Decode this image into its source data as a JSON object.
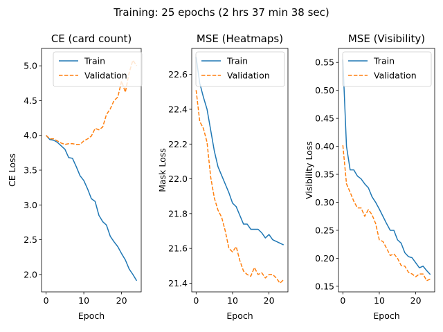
{
  "suptitle": "Training: 25 epochs (2 hrs 37 min 38 sec)",
  "colors": {
    "train": "#1f77b4",
    "validation": "#ff7f0e"
  },
  "chart_data": [
    {
      "type": "line",
      "title": "CE (card count)",
      "xlabel": "Epoch",
      "ylabel": "CE Loss",
      "xlim": [
        -1.2,
        25.2
      ],
      "ylim": [
        1.75,
        5.25
      ],
      "xticks": [
        0,
        10,
        20
      ],
      "yticks": [
        2.0,
        2.5,
        3.0,
        3.5,
        4.0,
        4.5,
        5.0
      ],
      "ytick_labels": [
        "2.0",
        "2.5",
        "3.0",
        "3.5",
        "4.0",
        "4.5",
        "5.0"
      ],
      "legend": "upper-left",
      "grid": false,
      "x": [
        0,
        1,
        2,
        3,
        4,
        5,
        6,
        7,
        8,
        9,
        10,
        11,
        12,
        13,
        14,
        15,
        16,
        17,
        18,
        19,
        20,
        21,
        22,
        23,
        24
      ],
      "series": [
        {
          "name": "Train",
          "style": "solid",
          "values": [
            4.0,
            3.94,
            3.93,
            3.9,
            3.85,
            3.8,
            3.68,
            3.67,
            3.55,
            3.42,
            3.35,
            3.23,
            3.09,
            3.05,
            2.85,
            2.76,
            2.71,
            2.55,
            2.47,
            2.4,
            2.3,
            2.21,
            2.08,
            2.0,
            1.91
          ]
        },
        {
          "name": "Validation",
          "style": "dashed",
          "values": [
            4.0,
            3.95,
            3.95,
            3.92,
            3.89,
            3.87,
            3.88,
            3.88,
            3.87,
            3.87,
            3.92,
            3.95,
            3.99,
            4.1,
            4.08,
            4.12,
            4.3,
            4.38,
            4.5,
            4.55,
            4.78,
            4.62,
            4.9,
            5.08,
            5.0
          ]
        }
      ]
    },
    {
      "type": "line",
      "title": "MSE (Heatmaps)",
      "xlabel": "Epoch",
      "ylabel": "Mask Loss",
      "xlim": [
        -1.2,
        25.2
      ],
      "ylim": [
        21.35,
        22.75
      ],
      "xticks": [
        0,
        10,
        20
      ],
      "yticks": [
        21.4,
        21.6,
        21.8,
        22.0,
        22.2,
        22.4,
        22.6
      ],
      "ytick_labels": [
        "21.4",
        "21.6",
        "21.8",
        "22.0",
        "22.2",
        "22.4",
        "22.6"
      ],
      "legend": "upper-right",
      "grid": false,
      "x": [
        0,
        1,
        2,
        3,
        4,
        5,
        6,
        7,
        8,
        9,
        10,
        11,
        12,
        13,
        14,
        15,
        16,
        17,
        18,
        19,
        20,
        21,
        22,
        23,
        24
      ],
      "series": [
        {
          "name": "Train",
          "style": "solid",
          "values": [
            22.7,
            22.55,
            22.47,
            22.4,
            22.28,
            22.16,
            22.07,
            22.02,
            21.97,
            21.92,
            21.86,
            21.84,
            21.79,
            21.74,
            21.74,
            21.71,
            21.71,
            21.71,
            21.69,
            21.66,
            21.68,
            21.65,
            21.64,
            21.63,
            21.62
          ]
        },
        {
          "name": "Validation",
          "style": "dashed",
          "values": [
            22.51,
            22.33,
            22.29,
            22.21,
            22.01,
            21.89,
            21.82,
            21.78,
            21.7,
            21.6,
            21.58,
            21.61,
            21.53,
            21.47,
            21.45,
            21.44,
            21.49,
            21.45,
            21.46,
            21.43,
            21.45,
            21.45,
            21.43,
            21.4,
            21.42
          ]
        }
      ]
    },
    {
      "type": "line",
      "title": "MSE (Visibility)",
      "xlabel": "Epoch",
      "ylabel": "Visibility Loss",
      "xlim": [
        -1.2,
        25.2
      ],
      "ylim": [
        0.14,
        0.575
      ],
      "xticks": [
        0,
        10,
        20
      ],
      "yticks": [
        0.15,
        0.2,
        0.25,
        0.3,
        0.35,
        0.4,
        0.45,
        0.5,
        0.55
      ],
      "ytick_labels": [
        "0.15",
        "0.20",
        "0.25",
        "0.30",
        "0.35",
        "0.40",
        "0.45",
        "0.50",
        "0.55"
      ],
      "legend": "upper-right",
      "grid": false,
      "x": [
        0,
        1,
        2,
        3,
        4,
        5,
        6,
        7,
        8,
        9,
        10,
        11,
        12,
        13,
        14,
        15,
        16,
        17,
        18,
        19,
        20,
        21,
        22,
        23,
        24
      ],
      "series": [
        {
          "name": "Train",
          "style": "solid",
          "values": [
            0.555,
            0.4,
            0.358,
            0.358,
            0.347,
            0.342,
            0.333,
            0.326,
            0.31,
            0.3,
            0.288,
            0.275,
            0.262,
            0.25,
            0.25,
            0.233,
            0.227,
            0.21,
            0.203,
            0.201,
            0.192,
            0.183,
            0.186,
            0.178,
            0.171
          ]
        },
        {
          "name": "Validation",
          "style": "dashed",
          "values": [
            0.402,
            0.333,
            0.318,
            0.302,
            0.29,
            0.29,
            0.275,
            0.287,
            0.278,
            0.262,
            0.233,
            0.23,
            0.218,
            0.205,
            0.208,
            0.2,
            0.187,
            0.186,
            0.175,
            0.172,
            0.167,
            0.172,
            0.172,
            0.16,
            0.163
          ]
        }
      ]
    }
  ]
}
